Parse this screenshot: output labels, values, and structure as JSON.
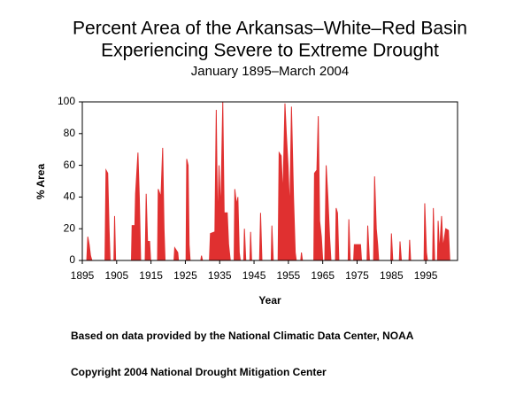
{
  "chart_data": {
    "type": "area",
    "title_lines": [
      "Percent Area of the Arkansas–White–Red Basin",
      "Experiencing Severe to Extreme Drought"
    ],
    "subtitle": "January 1895–March 2004",
    "x_label": "Year",
    "y_label": "% Area",
    "color": "#e03030",
    "xlim": [
      1895,
      2004.25
    ],
    "ylim": [
      0,
      100
    ],
    "xticks": [
      1895,
      1905,
      1915,
      1925,
      1935,
      1945,
      1955,
      1965,
      1975,
      1985,
      1995
    ],
    "yticks": [
      0,
      20,
      40,
      60,
      80,
      100
    ],
    "x": [
      1895,
      1896.3,
      1896.6,
      1897.0,
      1897.4,
      1897.8,
      1901.6,
      1901.9,
      1902.4,
      1902.8,
      1903.1,
      1904.2,
      1904.4,
      1904.7,
      1909.3,
      1909.5,
      1910.3,
      1910.5,
      1911.2,
      1911.6,
      1912.0,
      1913.3,
      1913.6,
      1914.0,
      1914.6,
      1914.9,
      1916.9,
      1917.1,
      1917.9,
      1918.4,
      1918.8,
      1919.1,
      1921.7,
      1921.9,
      1922.8,
      1923.0,
      1925.2,
      1925.4,
      1925.8,
      1926.1,
      1926.4,
      1929.5,
      1929.7,
      1930.0,
      1932.0,
      1932.3,
      1933.6,
      1934.0,
      1934.4,
      1934.8,
      1935.3,
      1935.9,
      1936.3,
      1937.2,
      1937.6,
      1938.1,
      1939.2,
      1939.4,
      1939.9,
      1940.3,
      1940.7,
      1941.0,
      1942.0,
      1942.2,
      1942.6,
      1943.8,
      1944.0,
      1944.3,
      1946.6,
      1946.9,
      1947.3,
      1950.0,
      1950.2,
      1950.6,
      1952.0,
      1952.3,
      1952.9,
      1953.4,
      1954.0,
      1954.4,
      1954.9,
      1955.4,
      1955.9,
      1956.5,
      1957.0,
      1957.3,
      1958.6,
      1958.8,
      1959.1,
      1962.4,
      1962.6,
      1963.3,
      1963.7,
      1964.1,
      1964.6,
      1965.0,
      1965.6,
      1966.0,
      1966.5,
      1967.0,
      1967.4,
      1968.7,
      1968.9,
      1969.3,
      1969.7,
      1972.4,
      1972.6,
      1973.0,
      1974.0,
      1974.2,
      1976.0,
      1976.3,
      1977.9,
      1978.1,
      1978.6,
      1979.8,
      1980.1,
      1980.6,
      1981.0,
      1981.3,
      1984.8,
      1985.0,
      1985.4,
      1987.3,
      1987.5,
      1987.9,
      1990.1,
      1990.3,
      1990.6,
      1994.5,
      1994.7,
      1995.2,
      1995.5,
      1997.0,
      1997.2,
      1997.6,
      1998.4,
      1998.6,
      1999.0,
      1999.6,
      2000.0,
      2000.8,
      2001.6,
      2002.0,
      2004.25
    ],
    "values": [
      0,
      0,
      15,
      10,
      3,
      0,
      0,
      57,
      55,
      20,
      0,
      0,
      28,
      0,
      0,
      22,
      22,
      42,
      68,
      40,
      0,
      0,
      42,
      12,
      12,
      0,
      0,
      45,
      40,
      71,
      20,
      0,
      0,
      8,
      5,
      0,
      0,
      64,
      60,
      10,
      0,
      0,
      3,
      0,
      0,
      17,
      18,
      95,
      20,
      60,
      30,
      100,
      30,
      30,
      10,
      0,
      0,
      45,
      35,
      40,
      5,
      0,
      0,
      20,
      0,
      0,
      18,
      0,
      0,
      30,
      0,
      0,
      22,
      0,
      0,
      68,
      66,
      40,
      99,
      80,
      60,
      30,
      97,
      40,
      5,
      0,
      0,
      5,
      0,
      0,
      55,
      57,
      91,
      25,
      15,
      0,
      0,
      60,
      40,
      15,
      0,
      0,
      33,
      30,
      0,
      0,
      26,
      0,
      0,
      10,
      10,
      0,
      0,
      22,
      0,
      0,
      53,
      20,
      10,
      0,
      0,
      17,
      0,
      0,
      12,
      0,
      0,
      13,
      0,
      0,
      36,
      5,
      0,
      0,
      33,
      0,
      0,
      25,
      5,
      28,
      8,
      20,
      19,
      0,
      0
    ],
    "notes": [
      "Based on data provided by the National Climatic Data Center, NOAA",
      "Copyright 2004 National Drought Mitigation Center"
    ]
  }
}
